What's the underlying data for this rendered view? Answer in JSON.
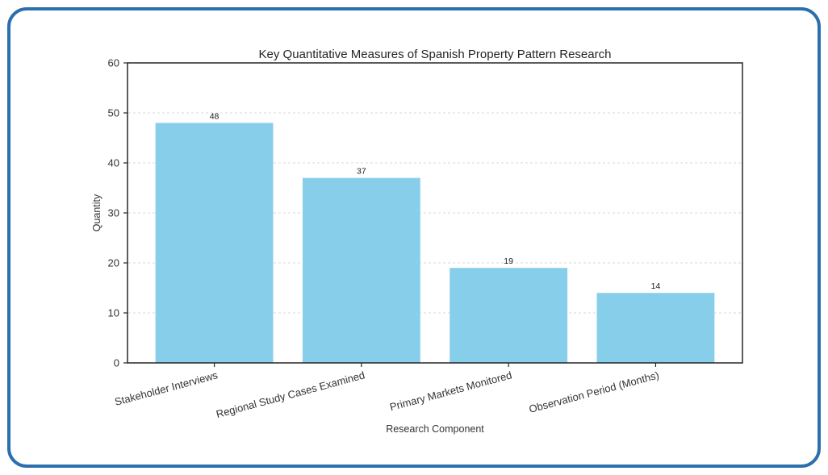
{
  "figure": {
    "frame_color": "#2C6FAE",
    "background": "#FFFFFF"
  },
  "chart_data": {
    "type": "bar",
    "title": "Key Quantitative Measures of Spanish Property Pattern Research",
    "xlabel": "Research Component",
    "ylabel": "Quantity",
    "categories": [
      "Stakeholder Interviews",
      "Regional Study Cases Examined",
      "Primary Markets Monitored",
      "Observation Period (Months)"
    ],
    "values": [
      48,
      37,
      19,
      14
    ],
    "ylim": [
      0,
      60
    ],
    "yticks": [
      0,
      10,
      20,
      30,
      40,
      50,
      60
    ],
    "bar_color": "#87CEEB",
    "grid": {
      "axis": "y",
      "style": "dashed",
      "color": "#D8D8D8"
    },
    "spine_color": "#262626",
    "text_color": "#333333",
    "x_tick_rotation_deg": 15,
    "legend": "none",
    "value_labels_shown": true
  }
}
